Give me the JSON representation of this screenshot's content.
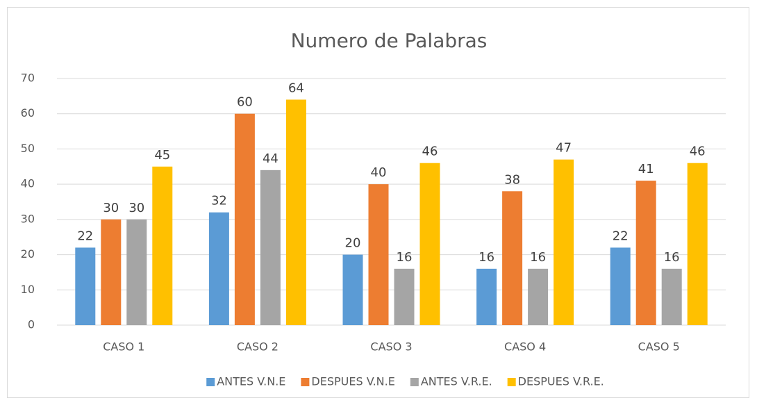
{
  "chart_data": {
    "type": "bar",
    "title": "Numero de Palabras",
    "categories": [
      "CASO 1",
      "CASO 2",
      "CASO 3",
      "CASO 4",
      "CASO 5"
    ],
    "series": [
      {
        "name": "ANTES V.N.E",
        "color": "#5b9bd5",
        "values": [
          22,
          32,
          20,
          16,
          22
        ]
      },
      {
        "name": "DESPUES V.N.E",
        "color": "#ed7d31",
        "values": [
          30,
          60,
          40,
          38,
          41
        ]
      },
      {
        "name": "ANTES V.R.E.",
        "color": "#a5a5a5",
        "values": [
          30,
          44,
          16,
          16,
          16
        ]
      },
      {
        "name": "DESPUES V.R.E.",
        "color": "#ffc000",
        "values": [
          45,
          64,
          46,
          47,
          46
        ]
      }
    ],
    "ylim": [
      0,
      70
    ],
    "yticks": [
      0,
      10,
      20,
      30,
      40,
      50,
      60,
      70
    ],
    "grid": true,
    "legend": "bottom"
  }
}
